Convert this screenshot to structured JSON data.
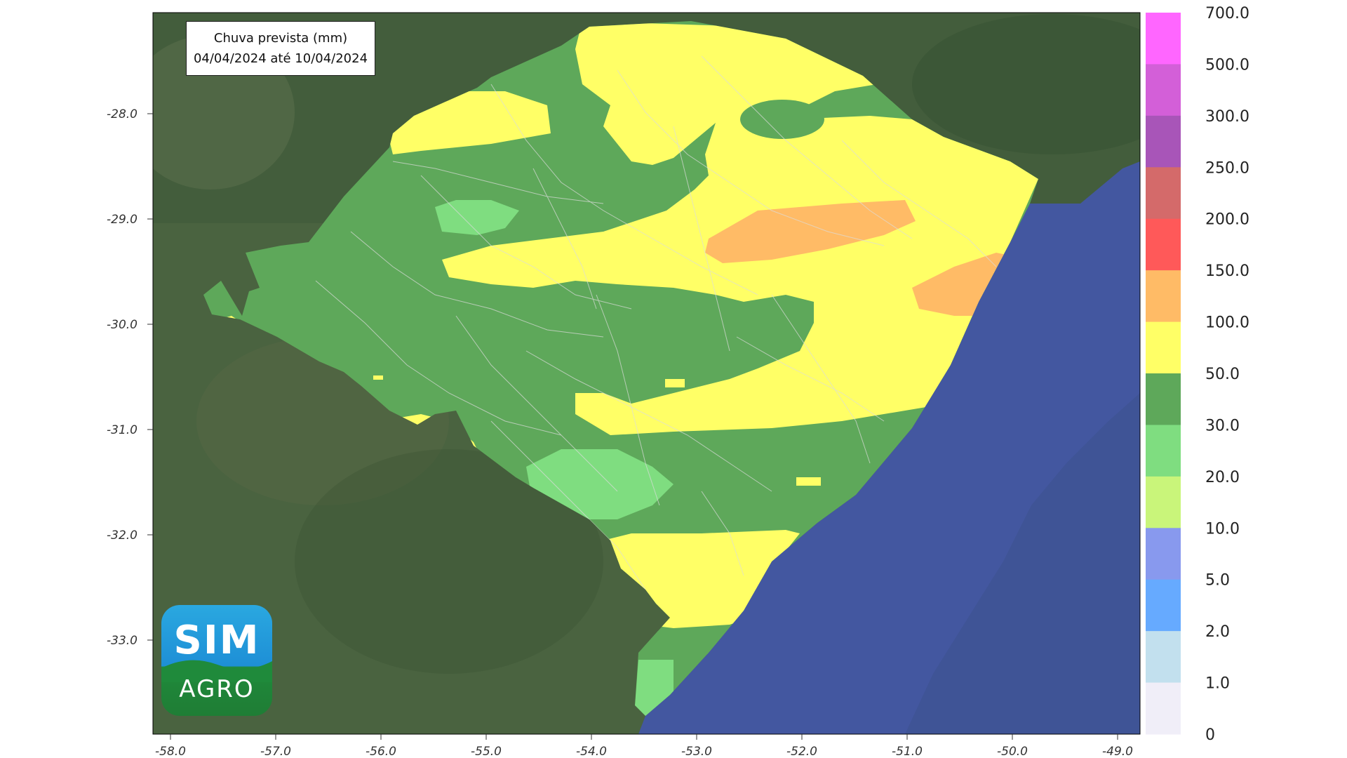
{
  "title": {
    "line1": "Chuva prevista (mm)",
    "line2": "04/04/2024 até 10/04/2024"
  },
  "axes": {
    "y_ticks": [
      "-28.0",
      "-29.0",
      "-30.0",
      "-31.0",
      "-32.0",
      "-33.0"
    ],
    "x_ticks": [
      "-58.0",
      "-57.0",
      "-56.0",
      "-55.0",
      "-54.0",
      "-53.0",
      "-52.0",
      "-51.0",
      "-50.0",
      "-49.0"
    ]
  },
  "colorbar": {
    "labels": [
      "700.0",
      "500.0",
      "300.0",
      "250.0",
      "200.0",
      "150.0",
      "100.0",
      "50.0",
      "30.0",
      "20.0",
      "10.0",
      "5.0",
      "2.0",
      "1.0",
      "0"
    ],
    "colors_top_to_bottom": [
      "#ff66ff",
      "#d35fd8",
      "#a855b8",
      "#d46a6a",
      "#ff5959",
      "#ffbb66",
      "#ffff66",
      "#5ea85a",
      "#7fdd80",
      "#c9f57a",
      "#8899ee",
      "#66aaff",
      "#c2e0ee",
      "#f0eef8"
    ]
  },
  "colors": {
    "land_bg": "#4a6340",
    "ocean": "#4357a0",
    "green_dark": "#5ea85a",
    "green_light": "#7fdd80",
    "yellow": "#ffff66",
    "orange": "#ffbb66"
  },
  "logo": {
    "top_text": "SIM",
    "bottom_text": "AGRO"
  }
}
